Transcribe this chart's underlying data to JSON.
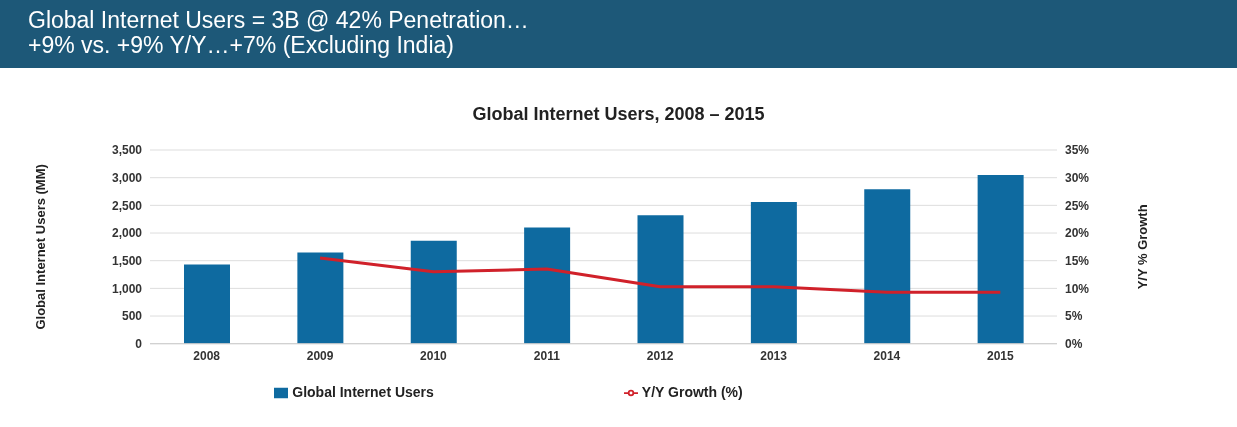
{
  "chart_data": {
    "type": "bar",
    "title": "Global Internet Users = 3B @ 42% Penetration…\n+9% vs. +9% Y/Y…+7% (Excluding India)",
    "subtitle": "Global Internet Users, 2008 – 2015",
    "ylabel": "Global Internet Users (MM)",
    "y2label": "Y/Y % Growth",
    "categories": [
      "2008",
      "2009",
      "2010",
      "2011",
      "2012",
      "2013",
      "2014",
      "2015"
    ],
    "series": [
      {
        "name": "Global Internet Users",
        "color": "#0e6aa0",
        "values": [
          1430,
          1650,
          1860,
          2100,
          2320,
          2560,
          2790,
          3050
        ]
      },
      {
        "name": "Y/Y Growth (%)",
        "type": "line",
        "axis": "y2",
        "color": "#d0212a",
        "values": [
          null,
          15.5,
          13,
          13.5,
          10.3,
          10.3,
          9.3,
          9.3
        ]
      }
    ],
    "ylim": [
      0,
      3500
    ],
    "yticks": [
      {
        "value": 0,
        "label": "0"
      },
      {
        "value": 500,
        "label": "500"
      },
      {
        "value": 1000,
        "label": "1,000"
      },
      {
        "value": 1500,
        "label": "1,500"
      },
      {
        "value": 2000,
        "label": "2,000"
      },
      {
        "value": 2500,
        "label": "2,500"
      },
      {
        "value": 3000,
        "label": "3,000"
      },
      {
        "value": 3500,
        "label": "3,500"
      }
    ],
    "y2lim": [
      0,
      35
    ],
    "y2ticks": [
      {
        "value": 0,
        "label": "0%"
      },
      {
        "value": 5,
        "label": "5%"
      },
      {
        "value": 10,
        "label": "10%"
      },
      {
        "value": 15,
        "label": "15%"
      },
      {
        "value": 20,
        "label": "20%"
      },
      {
        "value": 25,
        "label": "25%"
      },
      {
        "value": 30,
        "label": "30%"
      },
      {
        "value": 35,
        "label": "35%"
      }
    ],
    "grid": "y",
    "legend": "bottom",
    "marker": "none",
    "line_style": "solid"
  }
}
